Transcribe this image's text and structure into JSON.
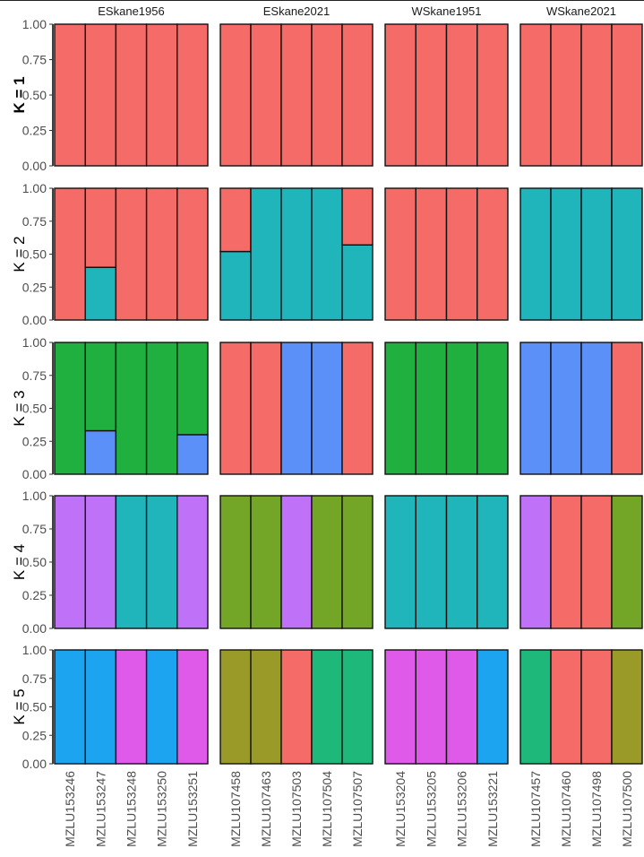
{
  "chart_data": {
    "type": "bar",
    "stacked": true,
    "ylim": [
      0,
      1
    ],
    "y_ticks": [
      "0.00",
      "0.25",
      "0.50",
      "0.75",
      "1.00"
    ],
    "grid": false,
    "palette": {
      "red": "#F46B67",
      "cyan": "#1FB5BB",
      "green": "#1FB03F",
      "blue": "#5B90F9",
      "purple": "#BF71F8",
      "olive": "#73A527",
      "skyblue": "#1DA4F0",
      "magenta": "#E05AEA",
      "mustard": "#999A28",
      "teal": "#1DB87A"
    },
    "populations": [
      {
        "name": "ESkane1956",
        "samples": [
          "MZLU153246",
          "MZLU153247",
          "MZLU153248",
          "MZLU153250",
          "MZLU153251"
        ]
      },
      {
        "name": "ESkane2021",
        "samples": [
          "MZLU107458",
          "MZLU107463",
          "MZLU107503",
          "MZLU107504",
          "MZLU107507"
        ]
      },
      {
        "name": "WSkane1951",
        "samples": [
          "MZLU153204",
          "MZLU153205",
          "MZLU153206",
          "MZLU153221"
        ]
      },
      {
        "name": "WSkane2021",
        "samples": [
          "MZLU107457",
          "MZLU107460",
          "MZLU107498",
          "MZLU107500"
        ]
      }
    ],
    "rows": [
      {
        "label": "K = 1",
        "panels": [
          [
            [
              [
                "red",
                1
              ]
            ],
            [
              [
                "red",
                1
              ]
            ],
            [
              [
                "red",
                1
              ]
            ],
            [
              [
                "red",
                1
              ]
            ],
            [
              [
                "red",
                1
              ]
            ]
          ],
          [
            [
              [
                "red",
                1
              ]
            ],
            [
              [
                "red",
                1
              ]
            ],
            [
              [
                "red",
                1
              ]
            ],
            [
              [
                "red",
                1
              ]
            ],
            [
              [
                "red",
                1
              ]
            ]
          ],
          [
            [
              [
                "red",
                1
              ]
            ],
            [
              [
                "red",
                1
              ]
            ],
            [
              [
                "red",
                1
              ]
            ],
            [
              [
                "red",
                1
              ]
            ]
          ],
          [
            [
              [
                "red",
                1
              ]
            ],
            [
              [
                "red",
                1
              ]
            ],
            [
              [
                "red",
                1
              ]
            ],
            [
              [
                "red",
                1
              ]
            ]
          ]
        ]
      },
      {
        "label": "K = 2",
        "panels": [
          [
            [
              [
                "red",
                1
              ]
            ],
            [
              [
                "cyan",
                0.4
              ],
              [
                "red",
                0.6
              ]
            ],
            [
              [
                "red",
                1
              ]
            ],
            [
              [
                "red",
                1
              ]
            ],
            [
              [
                "red",
                1
              ]
            ]
          ],
          [
            [
              [
                "cyan",
                0.52
              ],
              [
                "red",
                0.48
              ]
            ],
            [
              [
                "cyan",
                1
              ]
            ],
            [
              [
                "cyan",
                1
              ]
            ],
            [
              [
                "cyan",
                1
              ]
            ],
            [
              [
                "cyan",
                0.57
              ],
              [
                "red",
                0.43
              ]
            ]
          ],
          [
            [
              [
                "red",
                1
              ]
            ],
            [
              [
                "red",
                1
              ]
            ],
            [
              [
                "red",
                1
              ]
            ],
            [
              [
                "red",
                1
              ]
            ]
          ],
          [
            [
              [
                "cyan",
                1
              ]
            ],
            [
              [
                "cyan",
                1
              ]
            ],
            [
              [
                "cyan",
                1
              ]
            ],
            [
              [
                "cyan",
                1
              ]
            ]
          ]
        ]
      },
      {
        "label": "K = 3",
        "panels": [
          [
            [
              [
                "green",
                1
              ]
            ],
            [
              [
                "blue",
                0.33
              ],
              [
                "green",
                0.67
              ]
            ],
            [
              [
                "green",
                1
              ]
            ],
            [
              [
                "green",
                1
              ]
            ],
            [
              [
                "blue",
                0.3
              ],
              [
                "green",
                0.7
              ]
            ]
          ],
          [
            [
              [
                "red",
                1
              ]
            ],
            [
              [
                "red",
                1
              ]
            ],
            [
              [
                "blue",
                1
              ]
            ],
            [
              [
                "blue",
                1
              ]
            ],
            [
              [
                "red",
                1
              ]
            ]
          ],
          [
            [
              [
                "green",
                1
              ]
            ],
            [
              [
                "green",
                1
              ]
            ],
            [
              [
                "green",
                1
              ]
            ],
            [
              [
                "green",
                1
              ]
            ]
          ],
          [
            [
              [
                "blue",
                1
              ]
            ],
            [
              [
                "blue",
                1
              ]
            ],
            [
              [
                "blue",
                1
              ]
            ],
            [
              [
                "red",
                1
              ]
            ]
          ]
        ]
      },
      {
        "label": "K = 4",
        "panels": [
          [
            [
              [
                "purple",
                1
              ]
            ],
            [
              [
                "purple",
                1
              ]
            ],
            [
              [
                "cyan",
                1
              ]
            ],
            [
              [
                "cyan",
                1
              ]
            ],
            [
              [
                "purple",
                1
              ]
            ]
          ],
          [
            [
              [
                "olive",
                1
              ]
            ],
            [
              [
                "olive",
                1
              ]
            ],
            [
              [
                "purple",
                1
              ]
            ],
            [
              [
                "olive",
                1
              ]
            ],
            [
              [
                "olive",
                1
              ]
            ]
          ],
          [
            [
              [
                "cyan",
                1
              ]
            ],
            [
              [
                "cyan",
                1
              ]
            ],
            [
              [
                "cyan",
                1
              ]
            ],
            [
              [
                "cyan",
                1
              ]
            ]
          ],
          [
            [
              [
                "purple",
                1
              ]
            ],
            [
              [
                "red",
                1
              ]
            ],
            [
              [
                "red",
                1
              ]
            ],
            [
              [
                "olive",
                1
              ]
            ]
          ]
        ]
      },
      {
        "label": "K = 5",
        "panels": [
          [
            [
              [
                "skyblue",
                1
              ]
            ],
            [
              [
                "skyblue",
                1
              ]
            ],
            [
              [
                "magenta",
                1
              ]
            ],
            [
              [
                "skyblue",
                1
              ]
            ],
            [
              [
                "magenta",
                1
              ]
            ]
          ],
          [
            [
              [
                "mustard",
                1
              ]
            ],
            [
              [
                "mustard",
                1
              ]
            ],
            [
              [
                "red",
                1
              ]
            ],
            [
              [
                "teal",
                1
              ]
            ],
            [
              [
                "teal",
                1
              ]
            ]
          ],
          [
            [
              [
                "magenta",
                1
              ]
            ],
            [
              [
                "magenta",
                1
              ]
            ],
            [
              [
                "magenta",
                1
              ]
            ],
            [
              [
                "skyblue",
                1
              ]
            ]
          ],
          [
            [
              [
                "teal",
                1
              ]
            ],
            [
              [
                "red",
                1
              ]
            ],
            [
              [
                "red",
                1
              ]
            ],
            [
              [
                "mustard",
                1
              ]
            ]
          ]
        ]
      }
    ]
  }
}
